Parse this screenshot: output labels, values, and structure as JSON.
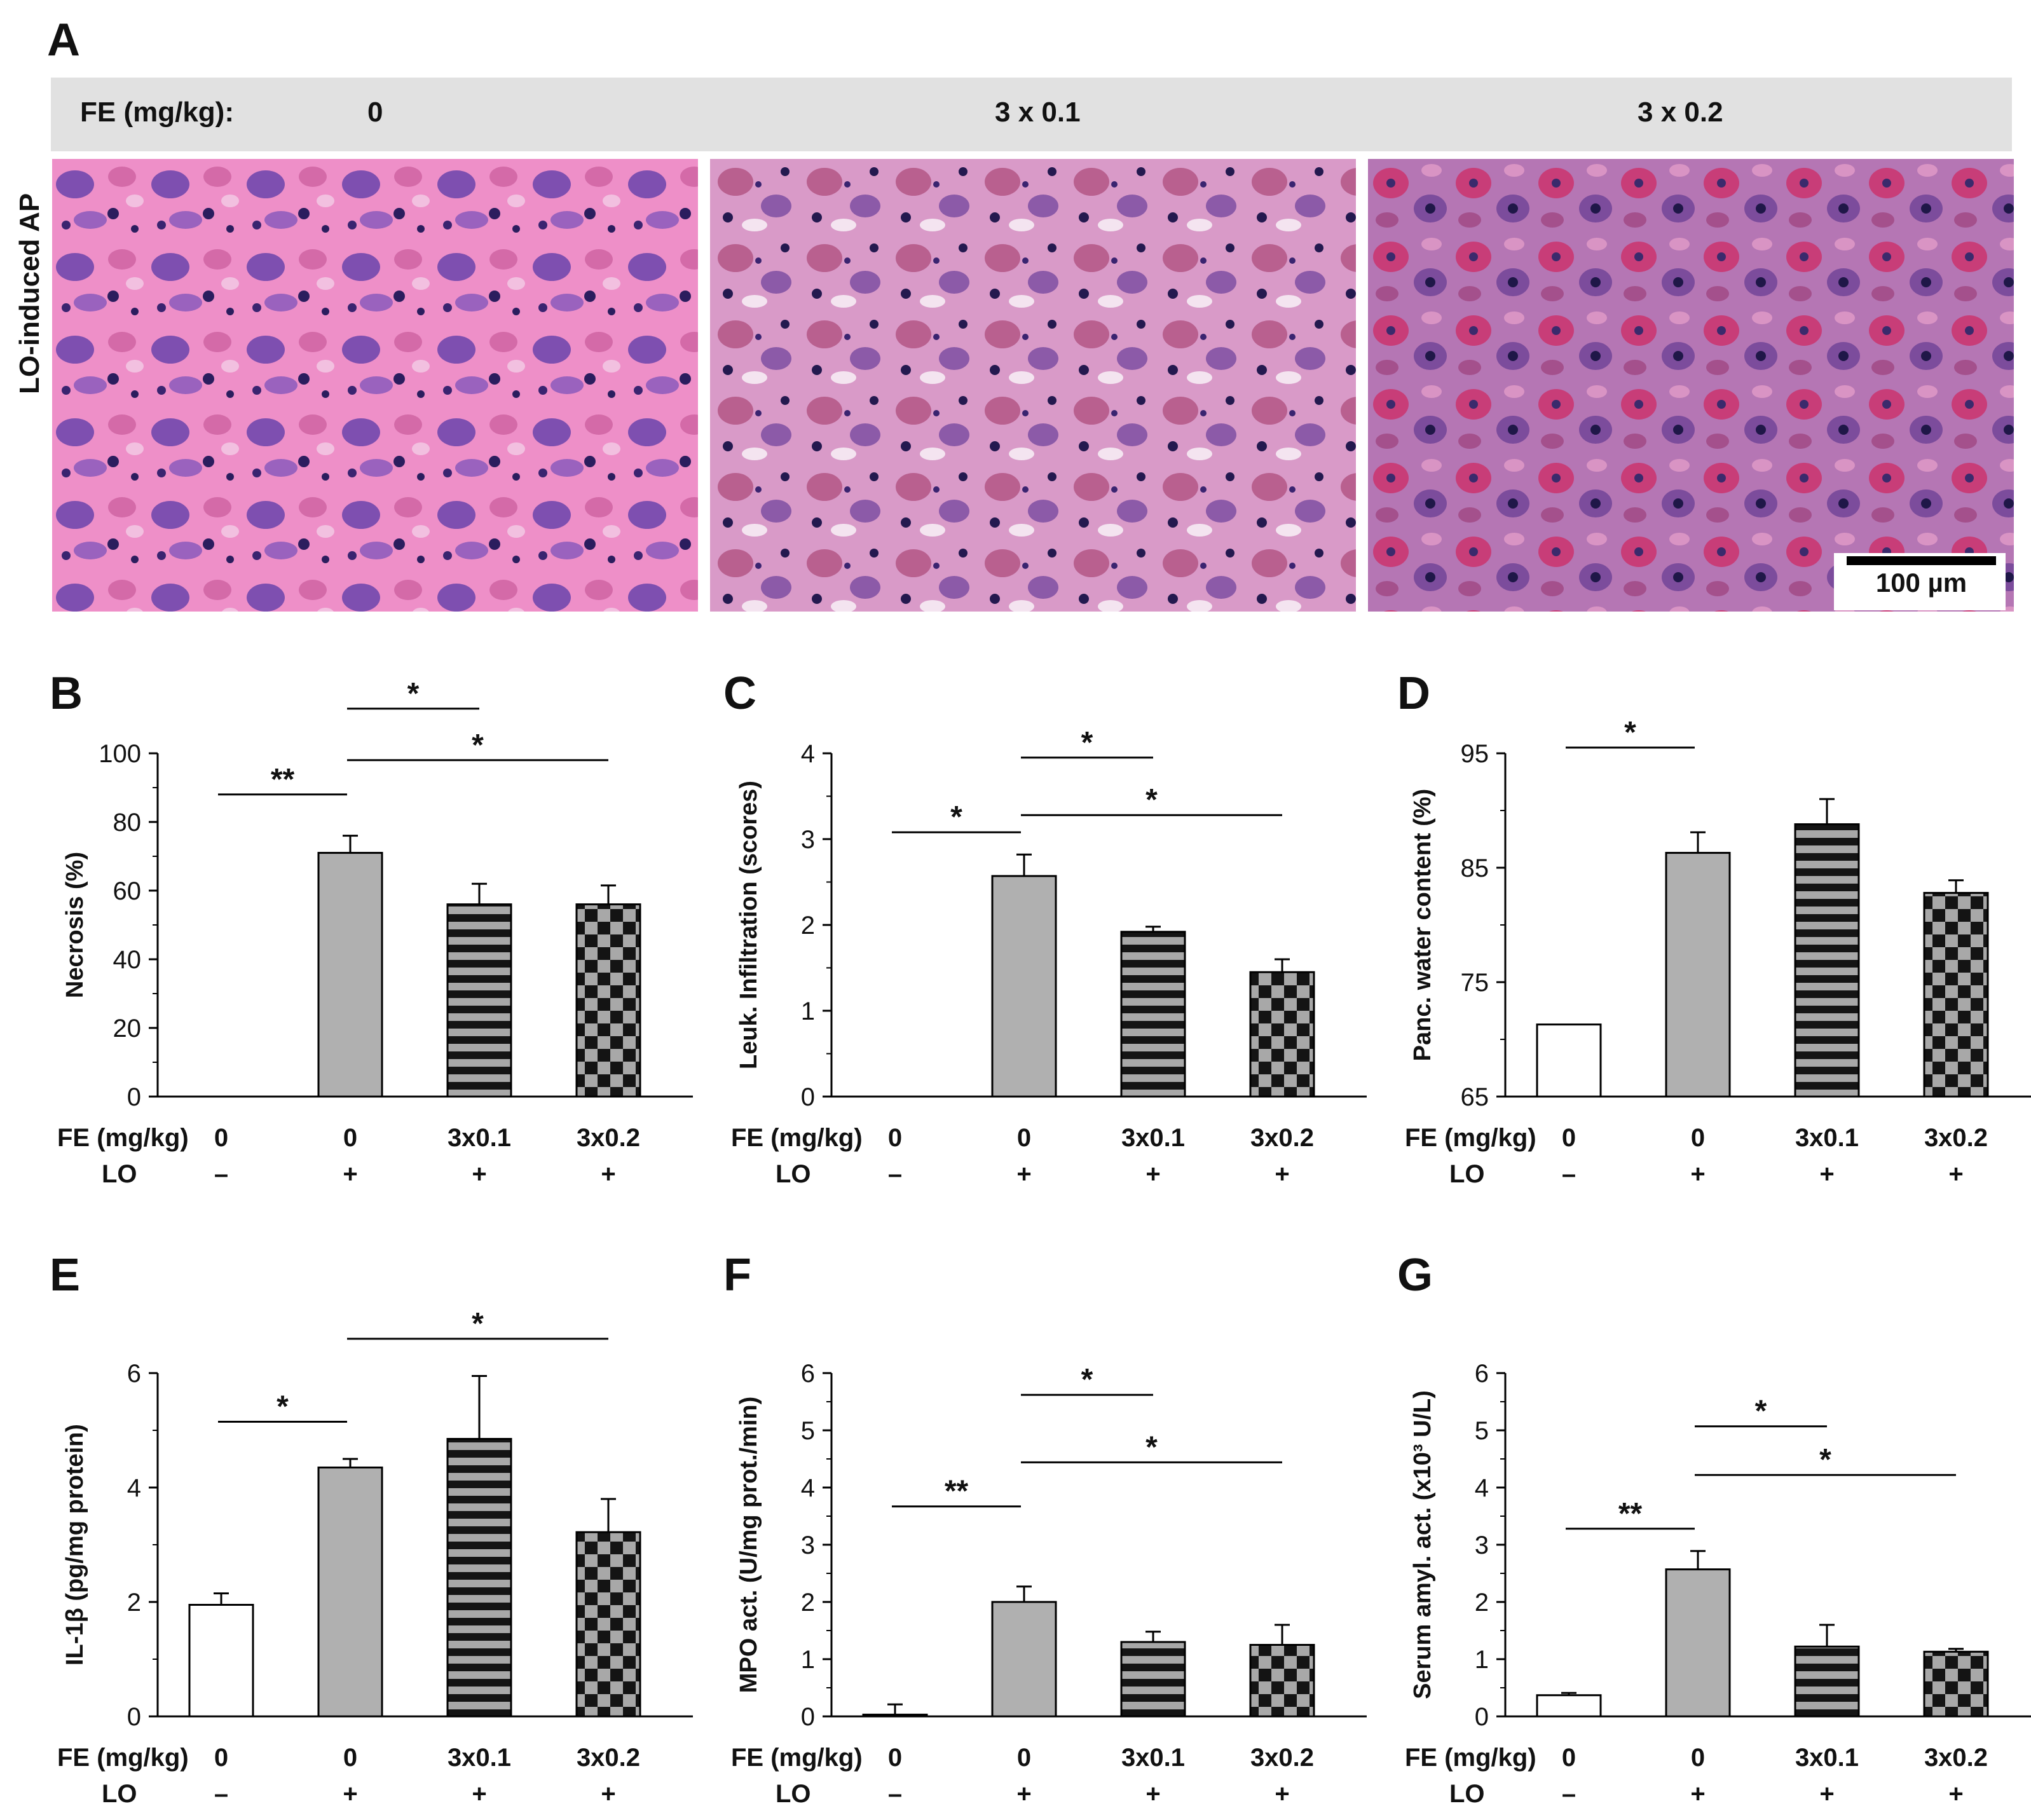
{
  "panel_a": {
    "letter": "A",
    "header_label": "FE (mg/kg):",
    "doses": [
      "0",
      "3 x 0.1",
      "3 x 0.2"
    ],
    "side_label": "LO-induced AP",
    "scale_bar": "100 µm"
  },
  "colors": {
    "gray_bar": "#b0b0b0",
    "white_bar": "#ffffff",
    "black": "#000000"
  },
  "row_labels": {
    "fe": "FE (mg/kg)",
    "lo": "LO"
  },
  "chart_data": [
    {
      "letter": "B",
      "type": "bar",
      "ylabel": "Necrosis (%)",
      "ylim": [
        0,
        100
      ],
      "ticks": [
        0,
        20,
        40,
        60,
        80,
        100
      ],
      "fe": [
        "0",
        "0",
        "3x0.1",
        "3x0.2"
      ],
      "lo": [
        "–",
        "+",
        "+",
        "+"
      ],
      "values": [
        0,
        71,
        56,
        56
      ],
      "errors": [
        0,
        5,
        6,
        5.5
      ],
      "patterns": [
        "none",
        "gray",
        "stripes",
        "checker"
      ],
      "significance": [
        {
          "from": 0,
          "to": 1,
          "label": "**",
          "y": 88
        },
        {
          "from": 1,
          "to": 2,
          "label": "*",
          "y": 113
        },
        {
          "from": 1,
          "to": 3,
          "label": "*",
          "y": 98
        }
      ]
    },
    {
      "letter": "C",
      "type": "bar",
      "ylabel": "Leuk. Infiltration (scores)",
      "ylim": [
        0,
        4
      ],
      "ticks": [
        0,
        1,
        2,
        3,
        4
      ],
      "fe": [
        "0",
        "0",
        "3x0.1",
        "3x0.2"
      ],
      "lo": [
        "–",
        "+",
        "+",
        "+"
      ],
      "values": [
        0,
        2.57,
        1.92,
        1.45
      ],
      "errors": [
        0,
        0.25,
        0.06,
        0.15
      ],
      "patterns": [
        "none",
        "gray",
        "stripes",
        "checker"
      ],
      "significance": [
        {
          "from": 0,
          "to": 1,
          "label": "*",
          "y": 3.08
        },
        {
          "from": 1,
          "to": 2,
          "label": "*",
          "y": 3.95
        },
        {
          "from": 1,
          "to": 3,
          "label": "*",
          "y": 3.28
        }
      ]
    },
    {
      "letter": "D",
      "type": "bar",
      "ylabel": "Panc. water content (%)",
      "ylim": [
        65,
        95
      ],
      "ticks": [
        65,
        75,
        85,
        95
      ],
      "fe": [
        "0",
        "0",
        "3x0.1",
        "3x0.2"
      ],
      "lo": [
        "–",
        "+",
        "+",
        "+"
      ],
      "values": [
        71.3,
        86.3,
        88.8,
        82.8
      ],
      "errors": [
        0,
        1.8,
        2.2,
        1.1
      ],
      "patterns": [
        "white",
        "gray",
        "stripes",
        "checker"
      ],
      "significance": [
        {
          "from": 0,
          "to": 1,
          "label": "*",
          "y": 95.5
        }
      ]
    },
    {
      "letter": "E",
      "type": "bar",
      "ylabel": "IL-1β (pg/mg protein)",
      "ylim": [
        0,
        6
      ],
      "ticks": [
        0,
        2,
        4,
        6
      ],
      "fe": [
        "0",
        "0",
        "3x0.1",
        "3x0.2"
      ],
      "lo": [
        "–",
        "+",
        "+",
        "+"
      ],
      "values": [
        1.95,
        4.35,
        4.85,
        3.22
      ],
      "errors": [
        0.2,
        0.15,
        1.1,
        0.58
      ],
      "patterns": [
        "white",
        "gray",
        "stripes",
        "checker"
      ],
      "significance": [
        {
          "from": 0,
          "to": 1,
          "label": "*",
          "y": 5.15
        },
        {
          "from": 1,
          "to": 3,
          "label": "*",
          "y": 6.6
        }
      ]
    },
    {
      "letter": "F",
      "type": "bar",
      "ylabel": "MPO act. (U/mg prot./min)",
      "ylim": [
        0,
        6
      ],
      "ticks": [
        0,
        1,
        2,
        3,
        4,
        5,
        6
      ],
      "fe": [
        "0",
        "0",
        "3x0.1",
        "3x0.2"
      ],
      "lo": [
        "–",
        "+",
        "+",
        "+"
      ],
      "values": [
        0.03,
        2.0,
        1.3,
        1.25
      ],
      "errors": [
        0.18,
        0.27,
        0.18,
        0.35
      ],
      "patterns": [
        "white",
        "gray",
        "stripes",
        "checker"
      ],
      "significance": [
        {
          "from": 0,
          "to": 1,
          "label": "**",
          "y": 3.67
        },
        {
          "from": 1,
          "to": 2,
          "label": "*",
          "y": 5.62
        },
        {
          "from": 1,
          "to": 3,
          "label": "*",
          "y": 4.44
        }
      ]
    },
    {
      "letter": "G",
      "type": "bar",
      "ylabel": "Serum amyl. act. (x10³ U/L)",
      "ylim": [
        0,
        6
      ],
      "ticks": [
        0,
        1,
        2,
        3,
        4,
        5,
        6
      ],
      "fe": [
        "0",
        "0",
        "3x0.1",
        "3x0.2"
      ],
      "lo": [
        "–",
        "+",
        "+",
        "+"
      ],
      "values": [
        0.37,
        2.57,
        1.22,
        1.13
      ],
      "errors": [
        0.04,
        0.32,
        0.38,
        0.05
      ],
      "patterns": [
        "white",
        "gray",
        "stripes",
        "checker"
      ],
      "significance": [
        {
          "from": 0,
          "to": 1,
          "label": "**",
          "y": 3.28
        },
        {
          "from": 1,
          "to": 2,
          "label": "*",
          "y": 5.07
        },
        {
          "from": 1,
          "to": 3,
          "label": "*",
          "y": 4.22
        }
      ]
    }
  ]
}
